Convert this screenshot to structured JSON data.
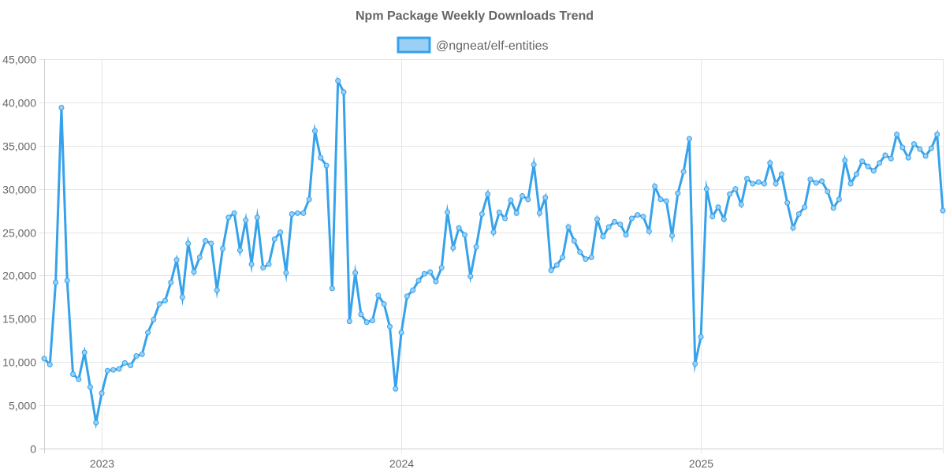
{
  "chart_data": {
    "type": "line",
    "title": "Npm Package Weekly Downloads Trend",
    "xlabel": "",
    "ylabel": "",
    "ylim": [
      0,
      45000
    ],
    "yticks": [
      0,
      5000,
      10000,
      15000,
      20000,
      25000,
      30000,
      35000,
      40000,
      45000
    ],
    "ytick_labels": [
      "0",
      "5,000",
      "10,000",
      "15,000",
      "20,000",
      "25,000",
      "30,000",
      "35,000",
      "40,000",
      "45,000"
    ],
    "xticks": [
      {
        "label": "2023",
        "week": 10
      },
      {
        "label": "2024",
        "week": 62
      },
      {
        "label": "2025",
        "week": 114
      }
    ],
    "grid": true,
    "legend_position": "top-center",
    "colors": {
      "line": "#36a2eb",
      "fill": "#9ad0f5",
      "title": "#666666",
      "text": "#666666",
      "grid": "#e5e5e5"
    },
    "series": [
      {
        "name": "@ngneat/elf-entities",
        "values": [
          10400,
          9700,
          19200,
          39400,
          19400,
          8600,
          8000,
          11100,
          7100,
          3000,
          6400,
          9000,
          9100,
          9200,
          9900,
          9600,
          10700,
          10900,
          13400,
          14900,
          16700,
          17100,
          19200,
          21800,
          17500,
          23700,
          20400,
          22100,
          24000,
          23700,
          18300,
          23100,
          26700,
          27200,
          22900,
          26400,
          21300,
          26700,
          20900,
          21300,
          24200,
          25000,
          20300,
          27100,
          27200,
          27200,
          28800,
          36700,
          33600,
          32700,
          18500,
          42500,
          41200,
          14700,
          20300,
          15500,
          14600,
          14800,
          17700,
          16700,
          14100,
          6900,
          13400,
          17600,
          18300,
          19400,
          20200,
          20400,
          19300,
          20900,
          27300,
          23200,
          25500,
          24700,
          19900,
          23300,
          27100,
          29400,
          25000,
          27300,
          26600,
          28700,
          27200,
          29200,
          28800,
          32800,
          27200,
          29000,
          20600,
          21200,
          22100,
          25600,
          24000,
          22700,
          21900,
          22100,
          26500,
          24500,
          25600,
          26200,
          25900,
          24700,
          26600,
          27000,
          26800,
          25100,
          30300,
          28800,
          28600,
          24600,
          29500,
          32000,
          35800,
          9800,
          12900,
          30000,
          26800,
          27900,
          26500,
          29400,
          30000,
          28200,
          31200,
          30600,
          30800,
          30600,
          33000,
          30600,
          31700,
          28400,
          25500,
          27100,
          27900,
          31100,
          30700,
          30900,
          29700,
          27800,
          28800,
          33300,
          30600,
          31700,
          33200,
          32600,
          32100,
          33000,
          33900,
          33500,
          36300,
          34800,
          33600,
          35200,
          34600,
          33800,
          34700,
          36300,
          27500
        ]
      }
    ]
  }
}
